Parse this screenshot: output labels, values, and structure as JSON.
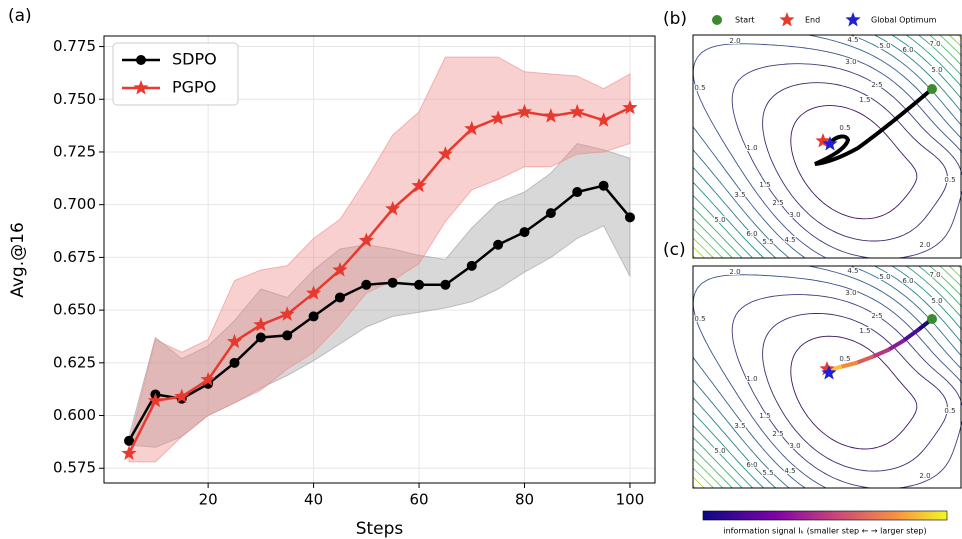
{
  "chart_data": {
    "type": "line",
    "panel_label": "(a)",
    "x": [
      5,
      10,
      15,
      20,
      25,
      30,
      35,
      40,
      45,
      50,
      55,
      60,
      65,
      70,
      75,
      80,
      85,
      90,
      95,
      100
    ],
    "xlim": [
      0.25,
      104.75
    ],
    "xticks": [
      20,
      40,
      60,
      80,
      100
    ],
    "ylim": [
      0.568,
      0.78
    ],
    "yticks": [
      0.575,
      {
        "value": 0.6,
        "label": "0.600"
      },
      0.625,
      {
        "value": 0.65,
        "label": "0.650"
      },
      0.675,
      {
        "value": 0.7,
        "label": "0.700"
      },
      0.725,
      {
        "value": 0.75,
        "label": "0.750"
      },
      0.775
    ],
    "xlabel": "Steps",
    "ylabel": "Avg.@16",
    "grid": true,
    "legend": "upper left",
    "series": [
      {
        "name": "SDPO",
        "color": "#000000",
        "band_color": "#9e9e9e",
        "marker": "circle",
        "values": [
          0.588,
          0.61,
          0.608,
          0.615,
          0.625,
          0.637,
          0.638,
          0.647,
          0.656,
          0.662,
          0.663,
          0.662,
          0.662,
          0.671,
          0.681,
          0.687,
          0.696,
          0.706,
          0.709,
          0.694
        ],
        "lower": [
          0.586,
          0.585,
          0.59,
          0.6,
          0.606,
          0.613,
          0.619,
          0.626,
          0.634,
          0.642,
          0.647,
          0.649,
          0.651,
          0.654,
          0.66,
          0.668,
          0.675,
          0.684,
          0.69,
          0.666
        ],
        "upper": [
          0.59,
          0.637,
          0.627,
          0.633,
          0.645,
          0.66,
          0.656,
          0.669,
          0.679,
          0.681,
          0.679,
          0.676,
          0.674,
          0.689,
          0.701,
          0.706,
          0.715,
          0.729,
          0.726,
          0.722
        ]
      },
      {
        "name": "PGPO",
        "color": "#e8392e",
        "band_color": "#f08a8a",
        "marker": "star",
        "values": [
          0.582,
          0.607,
          0.609,
          0.617,
          0.635,
          0.643,
          0.648,
          0.658,
          0.669,
          0.683,
          0.698,
          0.709,
          0.724,
          0.736,
          0.741,
          0.744,
          0.742,
          0.744,
          0.74,
          0.746
        ],
        "lower": [
          0.578,
          0.578,
          0.59,
          0.6,
          0.606,
          0.612,
          0.622,
          0.63,
          0.643,
          0.658,
          0.664,
          0.672,
          0.692,
          0.707,
          0.712,
          0.718,
          0.718,
          0.724,
          0.725,
          0.729
        ],
        "upper": [
          0.586,
          0.636,
          0.63,
          0.636,
          0.664,
          0.669,
          0.671,
          0.684,
          0.693,
          0.712,
          0.733,
          0.744,
          0.77,
          0.77,
          0.77,
          0.763,
          0.762,
          0.761,
          0.755,
          0.762
        ]
      }
    ]
  },
  "contour_legend": {
    "start": "Start",
    "end": "End",
    "optimum": "Global Optimum"
  },
  "contour_panels": [
    {
      "panel_label": "(b)",
      "contour_labels": [
        "2.0",
        "4.5",
        "5.0",
        "6.0",
        "7.0",
        "5.0",
        "3.0",
        "2.5",
        "1.5",
        "0.5",
        "0.5",
        "1.0",
        "1.5",
        "2.5",
        "3.0",
        "3.5",
        "5.0",
        "6.0",
        "5.5",
        "4.5",
        "2.0",
        "0.5"
      ]
    },
    {
      "panel_label": "(c)",
      "contour_labels": [
        "2.0",
        "4.5",
        "5.0",
        "6.0",
        "7.0",
        "5.0",
        "3.0",
        "2.5",
        "1.5",
        "0.5",
        "0.5",
        "1.0",
        "1.5",
        "2.5",
        "3.0",
        "3.5",
        "5.0",
        "6.0",
        "5.5",
        "4.5",
        "2.0",
        "0.5"
      ]
    }
  ],
  "colorbar": {
    "label": "information signal Iₖ (smaller step ← → larger step)"
  }
}
